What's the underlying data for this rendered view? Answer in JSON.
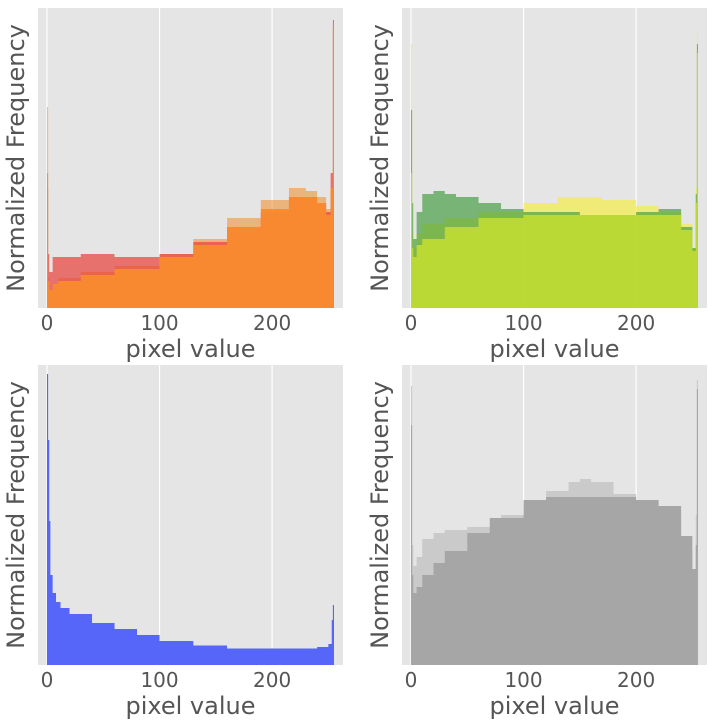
{
  "chart_data": [
    {
      "panel": "top-left",
      "type": "area",
      "title": "",
      "xlabel": "pixel value",
      "ylabel": "Normalized Frequency",
      "xlim": [
        -8,
        263
      ],
      "ylim": [
        0,
        1.0
      ],
      "xticks": [
        "0",
        "100",
        "200"
      ],
      "y_ticks_shown": false,
      "grid": true,
      "legend": "none",
      "series": [
        {
          "color": "#F28C28",
          "opacity": 0.55,
          "x": [
            0,
            1,
            2,
            5,
            10,
            30,
            60,
            100,
            130,
            160,
            190,
            215,
            230,
            240,
            248,
            252,
            254,
            255
          ],
          "values": [
            0.67,
            0.1,
            0.06,
            0.08,
            0.1,
            0.12,
            0.14,
            0.18,
            0.23,
            0.3,
            0.36,
            0.4,
            0.39,
            0.37,
            0.33,
            0.4,
            0.93,
            0.0
          ]
        },
        {
          "color": "#E8403A",
          "opacity": 0.7,
          "x": [
            0,
            1,
            2,
            5,
            10,
            30,
            60,
            100,
            130,
            160,
            190,
            215,
            230,
            240,
            248,
            252,
            254,
            255
          ],
          "values": [
            0.4,
            0.18,
            0.12,
            0.17,
            0.17,
            0.18,
            0.17,
            0.18,
            0.22,
            0.27,
            0.32,
            0.37,
            0.37,
            0.35,
            0.32,
            0.45,
            0.96,
            0.0
          ]
        },
        {
          "color": "#F98B2E",
          "opacity": 0.95,
          "x": [
            0,
            1,
            2,
            5,
            10,
            30,
            60,
            100,
            130,
            160,
            190,
            215,
            230,
            240,
            248,
            252,
            254,
            255
          ],
          "values": [
            0.45,
            0.09,
            0.06,
            0.08,
            0.09,
            0.11,
            0.13,
            0.17,
            0.21,
            0.27,
            0.33,
            0.37,
            0.37,
            0.35,
            0.31,
            0.4,
            0.94,
            0.0
          ]
        }
      ]
    },
    {
      "panel": "top-right",
      "type": "area",
      "title": "",
      "xlabel": "pixel value",
      "ylabel": "Normalized Frequency",
      "xlim": [
        -8,
        263
      ],
      "ylim": [
        0,
        1.0
      ],
      "xticks": [
        "0",
        "100",
        "200"
      ],
      "y_ticks_shown": false,
      "grid": true,
      "legend": "none",
      "series": [
        {
          "color": "#F2EC50",
          "opacity": 0.75,
          "x": [
            0,
            1,
            2,
            5,
            10,
            30,
            60,
            100,
            130,
            150,
            170,
            200,
            220,
            240,
            250,
            253,
            254,
            255
          ],
          "values": [
            0.88,
            0.25,
            0.2,
            0.25,
            0.28,
            0.3,
            0.32,
            0.35,
            0.37,
            0.37,
            0.36,
            0.34,
            0.32,
            0.28,
            0.2,
            0.4,
            0.92,
            0.0
          ]
        },
        {
          "color": "#3E9A3A",
          "opacity": 0.65,
          "x": [
            0,
            1,
            2,
            5,
            10,
            20,
            30,
            40,
            60,
            80,
            100,
            150,
            200,
            220,
            240,
            250,
            253,
            254,
            255
          ],
          "values": [
            0.66,
            0.35,
            0.23,
            0.32,
            0.38,
            0.39,
            0.38,
            0.37,
            0.35,
            0.33,
            0.32,
            0.31,
            0.32,
            0.33,
            0.27,
            0.2,
            0.38,
            0.88,
            0.0
          ]
        },
        {
          "color": "#BFDB33",
          "opacity": 0.95,
          "x": [
            0,
            1,
            2,
            5,
            10,
            30,
            60,
            100,
            130,
            150,
            170,
            200,
            220,
            240,
            250,
            253,
            254,
            255
          ],
          "values": [
            0.45,
            0.2,
            0.17,
            0.21,
            0.23,
            0.27,
            0.3,
            0.31,
            0.31,
            0.31,
            0.31,
            0.31,
            0.31,
            0.26,
            0.19,
            0.35,
            0.85,
            0.0
          ]
        }
      ]
    },
    {
      "panel": "bottom-left",
      "type": "area",
      "title": "",
      "xlabel": "pixel value",
      "ylabel": "Normalized Frequency",
      "xlim": [
        -8,
        263
      ],
      "ylim": [
        0,
        1.0
      ],
      "xticks": [
        "0",
        "100",
        "200"
      ],
      "y_ticks_shown": false,
      "grid": true,
      "legend": "none",
      "series": [
        {
          "color": "#5566F8",
          "opacity": 1.0,
          "x": [
            0,
            1,
            2,
            3,
            5,
            8,
            12,
            20,
            40,
            60,
            80,
            100,
            130,
            160,
            200,
            240,
            250,
            253,
            254,
            255
          ],
          "values": [
            0.97,
            0.75,
            0.48,
            0.3,
            0.24,
            0.21,
            0.19,
            0.17,
            0.14,
            0.12,
            0.1,
            0.08,
            0.065,
            0.055,
            0.055,
            0.06,
            0.07,
            0.15,
            0.2,
            0.0
          ]
        }
      ]
    },
    {
      "panel": "bottom-right",
      "type": "area",
      "title": "",
      "xlabel": "pixel value",
      "ylabel": "Normalized Frequency",
      "xlim": [
        -8,
        263
      ],
      "ylim": [
        0,
        1.0
      ],
      "xticks": [
        "0",
        "100",
        "200"
      ],
      "y_ticks_shown": false,
      "grid": true,
      "legend": "none",
      "series": [
        {
          "color": "#C6C6C6",
          "opacity": 0.9,
          "x": [
            0,
            1,
            2,
            5,
            10,
            20,
            30,
            50,
            80,
            100,
            120,
            140,
            150,
            160,
            180,
            200,
            220,
            240,
            250,
            253,
            254,
            255
          ],
          "values": [
            0.93,
            0.4,
            0.33,
            0.36,
            0.42,
            0.44,
            0.45,
            0.46,
            0.5,
            0.53,
            0.58,
            0.61,
            0.62,
            0.61,
            0.57,
            0.55,
            0.5,
            0.38,
            0.3,
            0.5,
            0.95,
            0.0
          ]
        },
        {
          "color": "#A6A6A6",
          "opacity": 1.0,
          "x": [
            0,
            1,
            2,
            5,
            10,
            20,
            30,
            50,
            70,
            100,
            120,
            150,
            170,
            200,
            220,
            240,
            250,
            253,
            254,
            255
          ],
          "values": [
            0.8,
            0.3,
            0.24,
            0.26,
            0.3,
            0.34,
            0.38,
            0.44,
            0.49,
            0.55,
            0.56,
            0.56,
            0.56,
            0.55,
            0.53,
            0.43,
            0.32,
            0.4,
            0.92,
            0.0
          ]
        }
      ]
    }
  ]
}
